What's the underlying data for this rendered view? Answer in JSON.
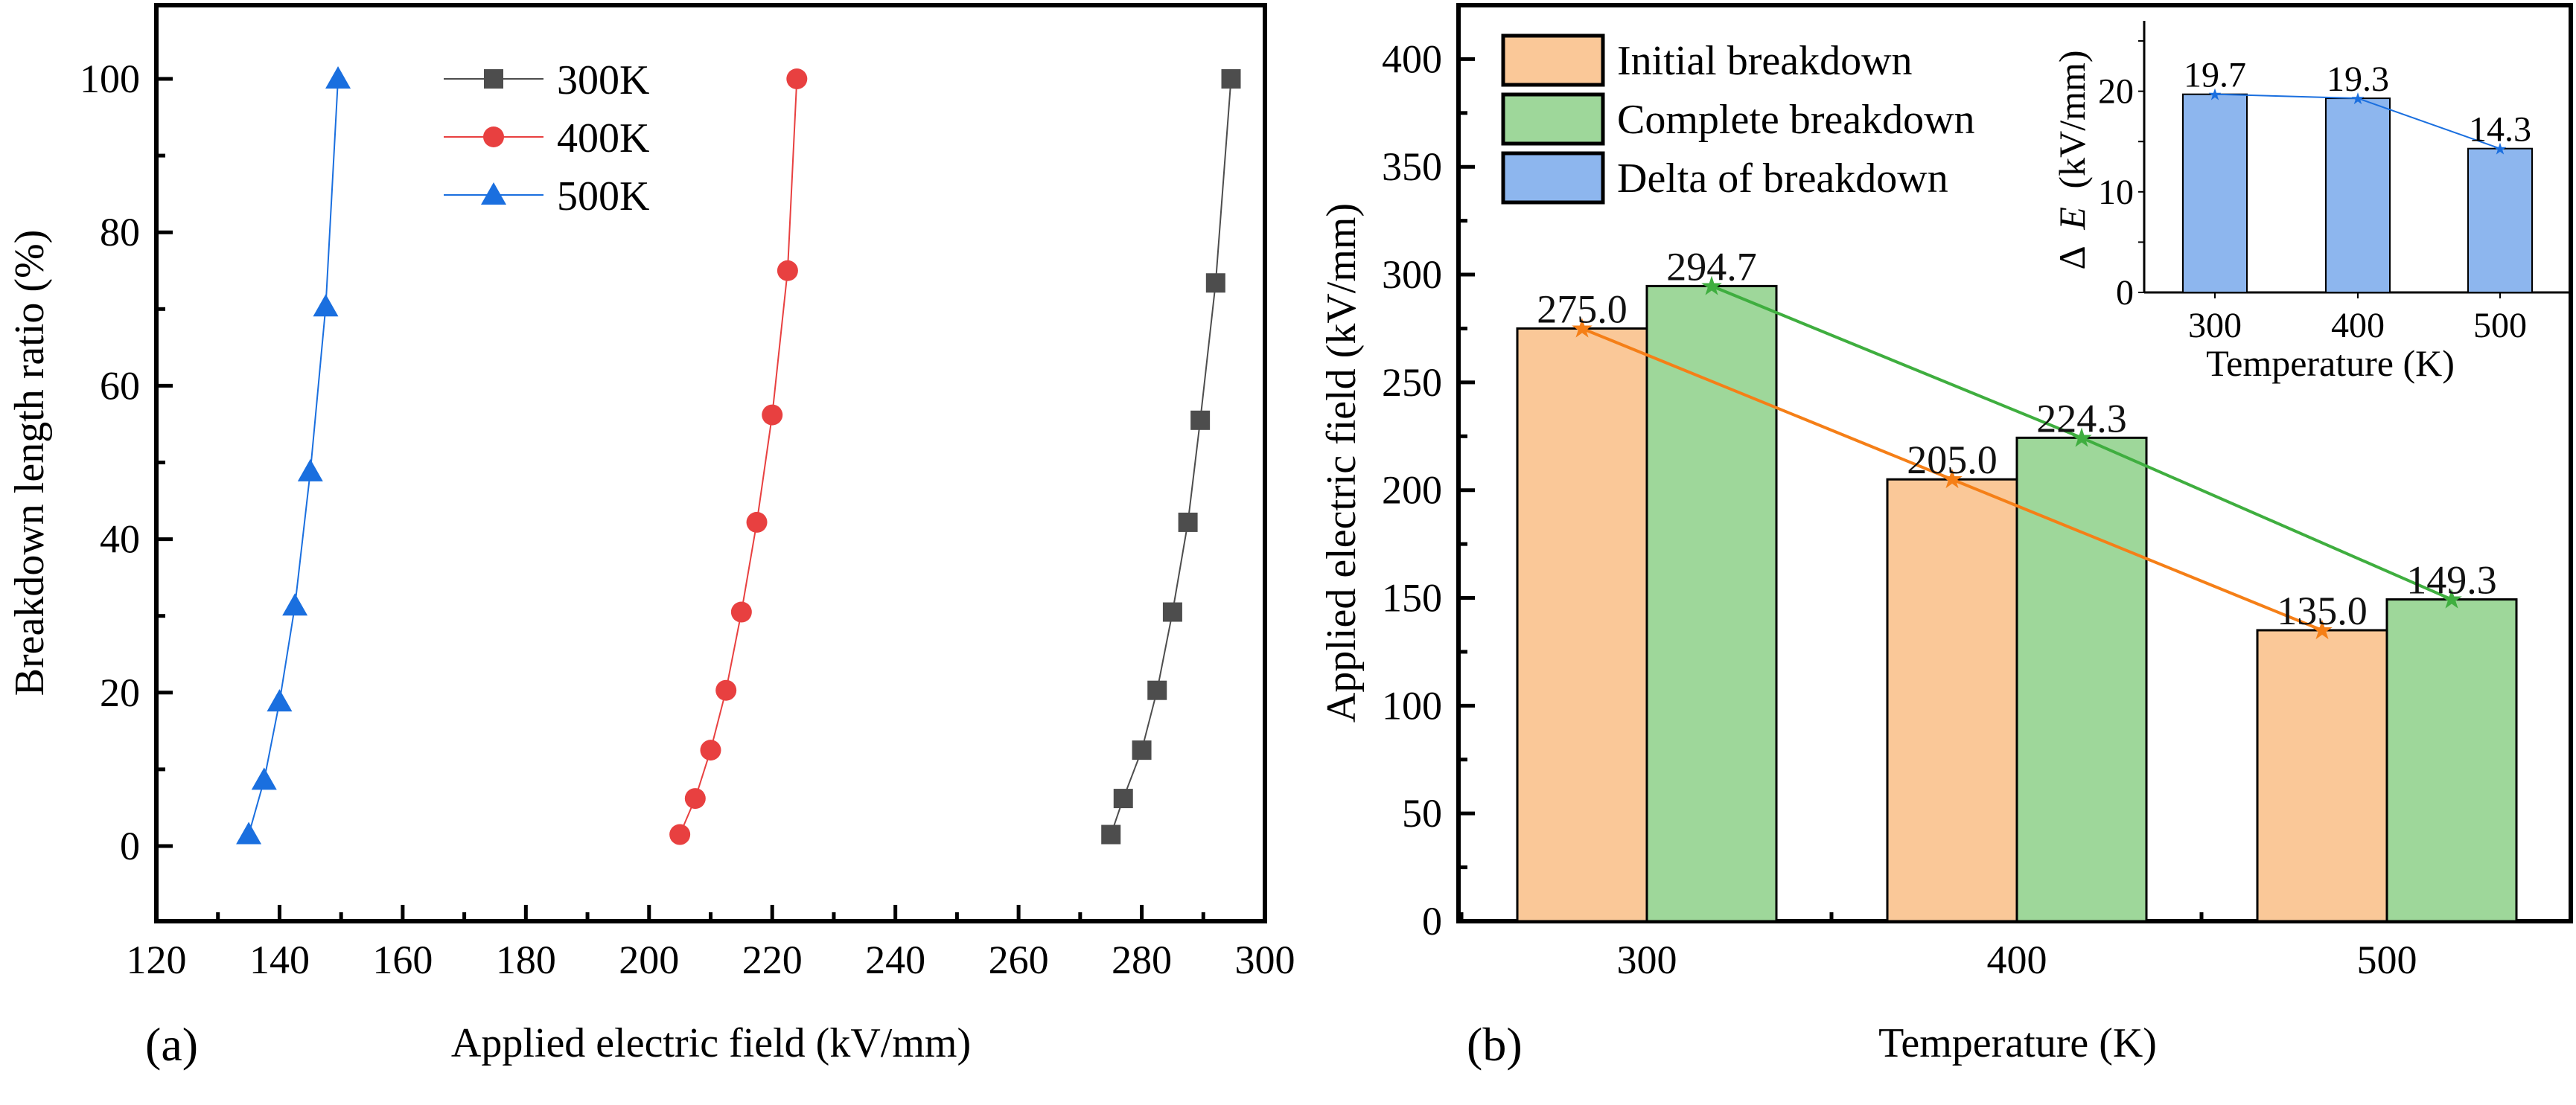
{
  "chart_data": [
    {
      "panel": "(a)",
      "type": "line",
      "title": "",
      "xlabel": "Applied electric field (kV/mm)",
      "ylabel": "Breakdown length ratio (%)",
      "xlim": [
        120,
        300
      ],
      "ylim": [
        -10,
        110
      ],
      "xticks": [
        120,
        140,
        160,
        180,
        200,
        220,
        240,
        260,
        280,
        300
      ],
      "yticks": [
        0,
        20,
        40,
        60,
        80,
        100
      ],
      "grid": false,
      "legend_position": "top-center",
      "series": [
        {
          "name": "300K",
          "color": "#4d4d4d",
          "marker": "square",
          "x": [
            275,
            277,
            280,
            282.5,
            285,
            287.5,
            289.5,
            292,
            294.5
          ],
          "y": [
            1.5,
            6.2,
            12.5,
            20.3,
            30.5,
            42.2,
            55.5,
            73.4,
            100
          ]
        },
        {
          "name": "400K",
          "color": "#e84040",
          "marker": "circle",
          "x": [
            205,
            207.5,
            210,
            212.5,
            215,
            217.5,
            220,
            222.5,
            224
          ],
          "y": [
            1.5,
            6.2,
            12.5,
            20.3,
            30.5,
            42.2,
            56.2,
            75,
            100
          ]
        },
        {
          "name": "500K",
          "color": "#1a6fdf",
          "marker": "triangle",
          "x": [
            135,
            137.5,
            140,
            142.5,
            145,
            147.5,
            149.5
          ],
          "y": [
            1.5,
            8.6,
            18.8,
            31.3,
            48.8,
            70.3,
            100
          ]
        }
      ]
    },
    {
      "panel": "(b)",
      "type": "bar",
      "title": "",
      "xlabel": "Temperature (K)",
      "ylabel": "Applied electric field (kV/mm)",
      "categories": [
        "300",
        "400",
        "500"
      ],
      "ylim": [
        0,
        425
      ],
      "yticks": [
        0,
        50,
        100,
        150,
        200,
        250,
        300,
        350,
        400
      ],
      "grid": false,
      "legend_position": "top-left",
      "series": [
        {
          "name": "Initial breakdown",
          "color": "#fac898",
          "line_color": "#f57f17",
          "values": [
            275.0,
            205.0,
            135.0
          ],
          "labels": [
            "275.0",
            "205.0",
            "135.0"
          ]
        },
        {
          "name": "Complete breakdown",
          "color": "#9ed79a",
          "line_color": "#3fae3f",
          "values": [
            294.7,
            224.3,
            149.3
          ],
          "labels": [
            "294.7",
            "224.3",
            "149.3"
          ]
        }
      ],
      "legend": [
        {
          "name": "Initial breakdown",
          "color": "#fac898"
        },
        {
          "name": "Complete breakdown",
          "color": "#9ed79a"
        },
        {
          "name": "Delta of breakdown",
          "color": "#8db6ee"
        }
      ]
    },
    {
      "panel": "(b) inset",
      "type": "bar",
      "title": "",
      "xlabel": "Temperature (K)",
      "ylabel_prefix": "Δ",
      "ylabel_var": "E",
      "ylabel_unit": "(kV/mm)",
      "categories": [
        "300",
        "400",
        "500"
      ],
      "ylim": [
        0,
        27
      ],
      "yticks": [
        0,
        10,
        20
      ],
      "grid": false,
      "series": [
        {
          "name": "Delta of breakdown",
          "color": "#8db6ee",
          "line_color": "#1a6fdf",
          "values": [
            19.7,
            19.3,
            14.3
          ],
          "labels": [
            "19.7",
            "19.3",
            "14.3"
          ]
        }
      ]
    }
  ],
  "panel_labels": {
    "a": "(a)",
    "b": "(b)"
  }
}
